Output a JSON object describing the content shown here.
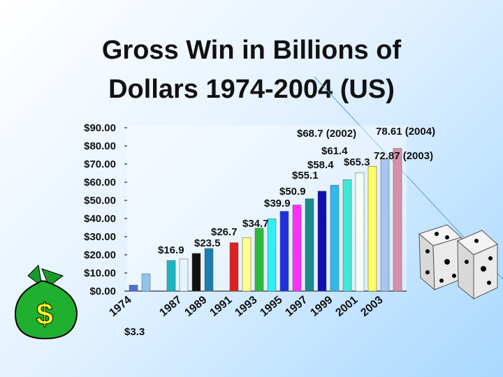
{
  "chart_data": {
    "type": "bar",
    "title": "Gross Win in Billions of Dollars 1974-2004 (US)",
    "categories": [
      "1974",
      null,
      null,
      null,
      "1987",
      null,
      "1989",
      null,
      "1991",
      null,
      "1993",
      null,
      "1995",
      null,
      "1997",
      null,
      "1999",
      null,
      "2001",
      null,
      "2003",
      null
    ],
    "values": [
      3.3,
      9.6,
      null,
      16.9,
      17.7,
      20.8,
      23.5,
      null,
      26.7,
      29.5,
      34.7,
      39.9,
      44,
      47.5,
      50.9,
      55.1,
      58.4,
      61.4,
      65.3,
      68.7,
      72.87,
      78.61
    ],
    "colors": [
      "#4a6fd8",
      "#8fc4f0",
      "#ffffff",
      "#19b6c4",
      "#e4f4ff",
      "#111111",
      "#1a7fb0",
      "#ffffff",
      "#e02020",
      "#ffff90",
      "#2dba3a",
      "#30f0f0",
      "#2030e0",
      "#ff30ff",
      "#1a8a8a",
      "#1010b0",
      "#30b8f0",
      "#40e8d8",
      "#f4fff4",
      "#ffff60",
      "#a8c4f0",
      "#d890a8"
    ],
    "ylim": [
      0,
      90
    ],
    "yticks": [
      {
        "value": 0,
        "label": "$0.00"
      },
      {
        "value": 10,
        "label": "$10.00"
      },
      {
        "value": 20,
        "label": "$20.00"
      },
      {
        "value": 30,
        "label": "$30.00"
      },
      {
        "value": 40,
        "label": "$40.00"
      },
      {
        "value": 50,
        "label": "$50.00"
      },
      {
        "value": 60,
        "label": "$60.00"
      },
      {
        "value": 70,
        "label": "$70.00"
      },
      {
        "value": 80,
        "label": "$80.00"
      },
      {
        "value": 90,
        "label": "$90.00"
      }
    ],
    "grid": false,
    "annotations": [
      "$68.7 (2002)",
      "78.61 (2004)",
      "$61.4",
      "72.87 (2003)",
      "$58.4",
      "$65.3",
      "$55.1",
      "$50.9",
      "$39.9",
      "$34.7",
      "$26.7",
      "$23.5",
      "$16.9",
      "$3.3"
    ]
  }
}
